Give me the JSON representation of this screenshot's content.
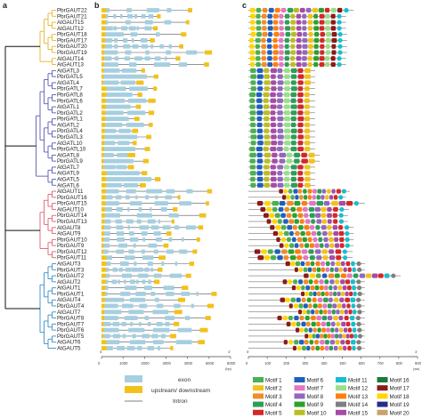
{
  "panels": {
    "a": "a",
    "b": "b",
    "c": "c"
  },
  "genes": [
    {
      "name": "PbrGAUT22",
      "clade": "gaut_a",
      "aa": 560
    },
    {
      "name": "PbrGAUT21",
      "clade": "gaut_a",
      "aa": 520
    },
    {
      "name": "AtGAUT15",
      "clade": "gaut_a",
      "aa": 520
    },
    {
      "name": "AtGAUT12",
      "clade": "gaut_a",
      "aa": 520
    },
    {
      "name": "PbrGAUT18",
      "clade": "gaut_a",
      "aa": 525
    },
    {
      "name": "PbrGAUT17",
      "clade": "gaut_a",
      "aa": 525
    },
    {
      "name": "PbrGAUT20",
      "clade": "gaut_a",
      "aa": 525
    },
    {
      "name": "PbrGAUT19",
      "clade": "gaut_a",
      "aa": 525
    },
    {
      "name": "AtGAUT14",
      "clade": "gaut_a",
      "aa": 520
    },
    {
      "name": "AtGAUT13",
      "clade": "gaut_a",
      "aa": 520
    },
    {
      "name": "AtGATL3",
      "clade": "gatl",
      "aa": 355
    },
    {
      "name": "PbrGATL5",
      "clade": "gatl",
      "aa": 355
    },
    {
      "name": "AtGATL4",
      "clade": "gatl",
      "aa": 355
    },
    {
      "name": "PbrGATL7",
      "clade": "gatl",
      "aa": 355
    },
    {
      "name": "PbrGATL8",
      "clade": "gatl",
      "aa": 355
    },
    {
      "name": "PbrGATL6",
      "clade": "gatl",
      "aa": 355
    },
    {
      "name": "AtGATL1",
      "clade": "gatl",
      "aa": 355
    },
    {
      "name": "PbrGATL2",
      "clade": "gatl",
      "aa": 355
    },
    {
      "name": "PbrGATL1",
      "clade": "gatl",
      "aa": 355
    },
    {
      "name": "AtGATL2",
      "clade": "gatl",
      "aa": 355
    },
    {
      "name": "PbrGATL4",
      "clade": "gatl",
      "aa": 355
    },
    {
      "name": "PbrGATL3",
      "clade": "gatl",
      "aa": 355
    },
    {
      "name": "AtGATL10",
      "clade": "gatl",
      "aa": 355
    },
    {
      "name": "PbrGATL10",
      "clade": "gatl",
      "aa": 355
    },
    {
      "name": "AtGATL8",
      "clade": "gatl",
      "aa": 380
    },
    {
      "name": "PbrGATL9",
      "clade": "gatl",
      "aa": 380
    },
    {
      "name": "AtGATL7",
      "clade": "gatl",
      "aa": 355
    },
    {
      "name": "AtGATL9",
      "clade": "gatl",
      "aa": 355
    },
    {
      "name": "AtGATL5",
      "clade": "gatl",
      "aa": 355
    },
    {
      "name": "AtGATL6",
      "clade": "gatl",
      "aa": 355
    },
    {
      "name": "AtGAUT11",
      "clade": "gaut_b",
      "aa": 540
    },
    {
      "name": "PbrGAUT16",
      "clade": "gaut_b",
      "aa": 520
    },
    {
      "name": "PbrGAUT15",
      "clade": "gaut_b",
      "aa": 620
    },
    {
      "name": "AtGAUT10",
      "clade": "gaut_b",
      "aa": 535
    },
    {
      "name": "PbrGAUT14",
      "clade": "gaut_b",
      "aa": 530
    },
    {
      "name": "PbrGAUT13",
      "clade": "gaut_b",
      "aa": 530
    },
    {
      "name": "AtGAUT8",
      "clade": "gaut_b",
      "aa": 560
    },
    {
      "name": "AtGAUT9",
      "clade": "gaut_b",
      "aa": 560
    },
    {
      "name": "PbrGAUT10",
      "clade": "gaut_b",
      "aa": 560
    },
    {
      "name": "PbrGAUT9",
      "clade": "gaut_b",
      "aa": 560
    },
    {
      "name": "PbrGAUT12",
      "clade": "gaut_b",
      "aa": 555
    },
    {
      "name": "PbrGAUT11",
      "clade": "gaut_b",
      "aa": 555
    },
    {
      "name": "AtGAUT3",
      "clade": "gaut_c",
      "aa": 620
    },
    {
      "name": "PbrGAUT3",
      "clade": "gaut_c",
      "aa": 620
    },
    {
      "name": "PbrGAUT2",
      "clade": "gaut_c",
      "aa": 810
    },
    {
      "name": "AtGAUT2",
      "clade": "gaut_c",
      "aa": 620
    },
    {
      "name": "AtGAUT1",
      "clade": "gaut_c",
      "aa": 620
    },
    {
      "name": "PbrGAUT1",
      "clade": "gaut_c",
      "aa": 620
    },
    {
      "name": "AtGAUT4",
      "clade": "gaut_c",
      "aa": 620
    },
    {
      "name": "PbrGAUT4",
      "clade": "gaut_c",
      "aa": 620
    },
    {
      "name": "AtGAUT7",
      "clade": "gaut_c",
      "aa": 620
    },
    {
      "name": "PbrGAUT8",
      "clade": "gaut_c",
      "aa": 620
    },
    {
      "name": "PbrGAUT7",
      "clade": "gaut_c",
      "aa": 620
    },
    {
      "name": "PbrGAUT6",
      "clade": "gaut_c",
      "aa": 620
    },
    {
      "name": "PbrGAUT5",
      "clade": "gaut_c",
      "aa": 620
    },
    {
      "name": "AtGAUT6",
      "clade": "gaut_c",
      "aa": 620
    },
    {
      "name": "AtGAUT5",
      "clade": "gaut_c",
      "aa": 620
    }
  ],
  "clade_colors": {
    "gaut_a": "#e8b629",
    "gatl": "#5b5bb3",
    "gaut_b": "#e06070",
    "gaut_c": "#3b8ec4"
  },
  "gene_structure": {
    "exon_color": "#a6cfe0",
    "utr_color": "#f2c21b",
    "intron_color": "#555555",
    "axis_ticks": [
      "0",
      "1000",
      "2000",
      "3000",
      "4000",
      "5000",
      "6000"
    ],
    "axis_max": 6000,
    "prime5": "5'",
    "prime3": "3'",
    "unit": "(bp)",
    "legend": {
      "exon": "exon",
      "utr": "upstream/ downstream",
      "intron": "Intron"
    }
  },
  "motif_panel": {
    "axis_ticks": [
      "0",
      "100",
      "200",
      "300",
      "400",
      "500",
      "600",
      "700",
      "800",
      "900"
    ],
    "axis_max": 900,
    "unit": "(aa)",
    "prime5": "5'",
    "prime3": "3'"
  },
  "motifs": [
    {
      "label": "Motif 1",
      "color": "#4caf50"
    },
    {
      "label": "Motif 2",
      "color": "#f2c21b"
    },
    {
      "label": "Motif 3",
      "color": "#f28c28"
    },
    {
      "label": "Motif 4",
      "color": "#2e9e57"
    },
    {
      "label": "Motif 5",
      "color": "#d62728"
    },
    {
      "label": "Motif 6",
      "color": "#1f5fbf"
    },
    {
      "label": "Motif 7",
      "color": "#e377c2"
    },
    {
      "label": "Motif 8",
      "color": "#9467bd"
    },
    {
      "label": "Motif 9",
      "color": "#2ca02c"
    },
    {
      "label": "Motif 10",
      "color": "#bcbd22"
    },
    {
      "label": "Motif 11",
      "color": "#17becf"
    },
    {
      "label": "Motif 12",
      "color": "#98df8a"
    },
    {
      "label": "Motif 13",
      "color": "#ff7f0e"
    },
    {
      "label": "Motif 14",
      "color": "#7f7f7f"
    },
    {
      "label": "Motif 15",
      "color": "#a64ca6"
    },
    {
      "label": "Motif 16",
      "color": "#1b7a3a"
    },
    {
      "label": "Motif 17",
      "color": "#8b1a1a"
    },
    {
      "label": "Motif 18",
      "color": "#ffd700"
    },
    {
      "label": "Motif 19",
      "color": "#2b2b8c"
    },
    {
      "label": "Motif 20",
      "color": "#c8a36a"
    }
  ]
}
